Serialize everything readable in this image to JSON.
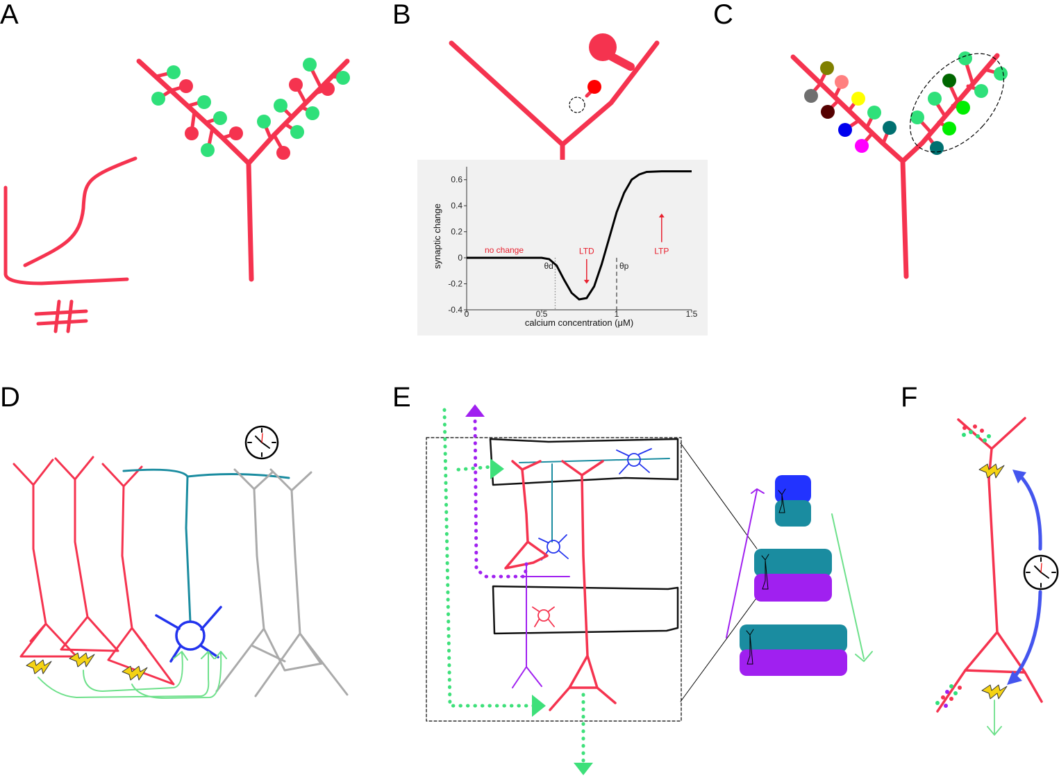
{
  "panels": {
    "a": "A",
    "b": "B",
    "c": "C",
    "d": "D",
    "e": "E",
    "f": "F"
  },
  "colors": {
    "dendrite": "#f5334f",
    "spine_green": "#2fe07a",
    "interneuron": "#1a8ca0",
    "inhibitory": "#2233ee",
    "inactive": "#aaaaaa",
    "purple": "#a020f0",
    "feedback": "#6de08a"
  },
  "icons": [
    "clock-icon",
    "lightning-icon",
    "hash-icon"
  ],
  "chart_data": {
    "type": "line",
    "title": "",
    "xlabel": "calcium concentration (μM)",
    "ylabel": "synaptic change",
    "xlim": [
      0,
      1.5
    ],
    "ylim": [
      -0.4,
      0.7
    ],
    "x_ticks": [
      "0",
      "0.5",
      "1",
      "1.5"
    ],
    "y_ticks": [
      "0.6",
      "0.4",
      "0.2",
      "0",
      "-0.2",
      "-0.4"
    ],
    "x": [
      0,
      0.5,
      0.55,
      0.6,
      0.65,
      0.7,
      0.75,
      0.8,
      0.85,
      0.9,
      0.95,
      1.0,
      1.05,
      1.1,
      1.15,
      1.2,
      1.3,
      1.4,
      1.5
    ],
    "y": [
      0,
      0,
      -0.01,
      -0.06,
      -0.17,
      -0.27,
      -0.32,
      -0.31,
      -0.22,
      -0.05,
      0.15,
      0.35,
      0.5,
      0.6,
      0.64,
      0.66,
      0.665,
      0.665,
      0.665
    ],
    "thresholds": [
      {
        "name": "θd",
        "x": 0.59
      },
      {
        "name": "θp",
        "x": 1.0
      }
    ],
    "annotations": [
      {
        "text": "no change",
        "x": 0.25,
        "y": 0.06
      },
      {
        "text": "LTD",
        "x": 0.8,
        "y": 0.05
      },
      {
        "text": "LTP",
        "x": 1.3,
        "y": 0.05
      }
    ]
  }
}
